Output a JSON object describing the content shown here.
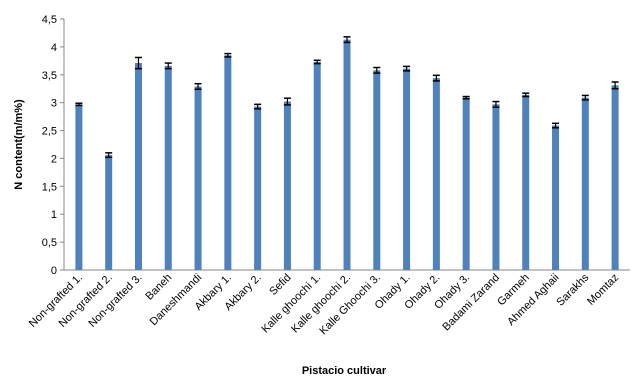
{
  "chart_data": {
    "type": "bar",
    "title": "",
    "xlabel": "Pistacio cultivar",
    "ylabel": "N content(m/m%)",
    "ylim": [
      0,
      4.5
    ],
    "yticks": [
      "0",
      "0,5",
      "1",
      "1,5",
      "2",
      "2,5",
      "3",
      "3,5",
      "4",
      "4,5"
    ],
    "ytick_values": [
      0,
      0.5,
      1,
      1.5,
      2,
      2.5,
      3,
      3.5,
      4,
      4.5
    ],
    "grid": false,
    "legend": "none",
    "bar_color": "#4f81bd",
    "categories": [
      "Non-grafted 1.",
      "Non-grafted 2.",
      "Non-grafted 3.",
      "Baneh",
      "Daneshmandi",
      "Akbary 1.",
      "Akbary 2.",
      "Sefid",
      "Kalle ghoochi 1.",
      "Kalle ghoochi 2.",
      "Kalle Ghoochi 3.",
      "Ohady 1.",
      "Ohady 2.",
      "Ohady 3.",
      "Badami Zarand",
      "Garmeh",
      "Ahmed Aghaii",
      "Sarakhs",
      "Momtaz"
    ],
    "values": [
      2.97,
      2.06,
      3.71,
      3.66,
      3.29,
      3.85,
      2.93,
      3.02,
      3.73,
      4.13,
      3.58,
      3.61,
      3.44,
      3.09,
      2.97,
      3.14,
      2.59,
      3.09,
      3.31
    ],
    "errors": [
      0.02,
      0.04,
      0.1,
      0.05,
      0.05,
      0.03,
      0.04,
      0.06,
      0.03,
      0.05,
      0.05,
      0.04,
      0.05,
      0.02,
      0.05,
      0.03,
      0.04,
      0.04,
      0.06
    ]
  }
}
